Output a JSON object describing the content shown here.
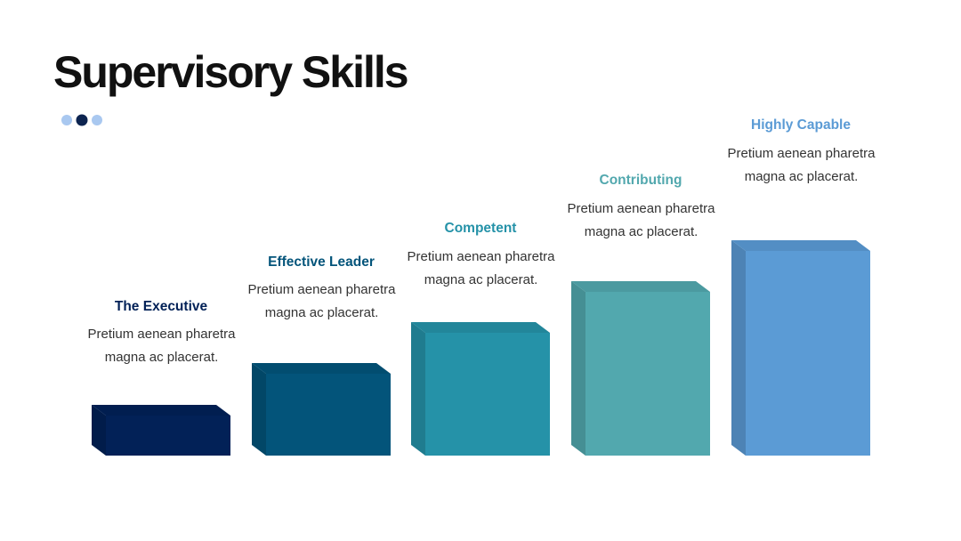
{
  "header": {
    "title": "Supervisory Skills"
  },
  "steps": [
    {
      "label": "The Executive",
      "text": "Pretium aenean pharetra magna ac placerat.",
      "color": "#022157"
    },
    {
      "label": "Effective Leader",
      "text": "Pretium aenean pharetra magna ac placerat.",
      "color": "#03547a"
    },
    {
      "label": "Competent",
      "text": "Pretium aenean pharetra magna ac placerat.",
      "color": "#2592a8"
    },
    {
      "label": "Contributing",
      "text": "Pretium aenean pharetra magna ac placerat.",
      "color": "#52a8ae"
    },
    {
      "label": "Highly Capable",
      "text": "Pretium aenean pharetra magna ac placerat.",
      "color": "#5b9bd5"
    }
  ]
}
